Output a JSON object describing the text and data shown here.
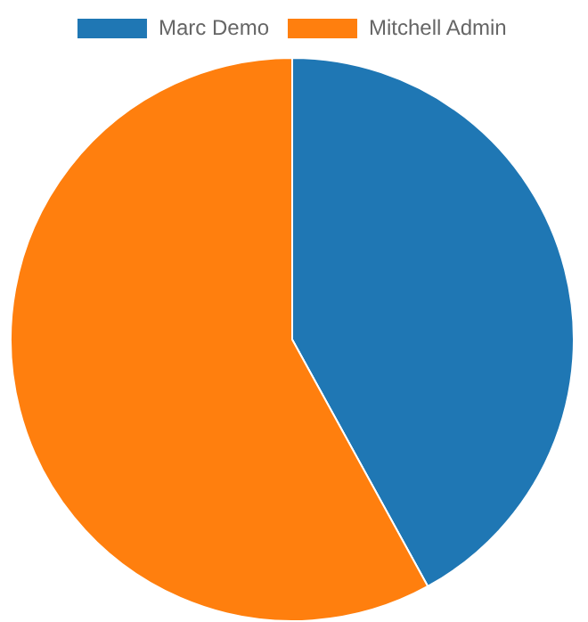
{
  "chart_data": {
    "type": "pie",
    "categories": [
      "Marc Demo",
      "Mitchell Admin"
    ],
    "values": [
      42,
      58
    ],
    "colors": [
      "#1f77b4",
      "#ff7f0e"
    ],
    "legend": "top"
  }
}
